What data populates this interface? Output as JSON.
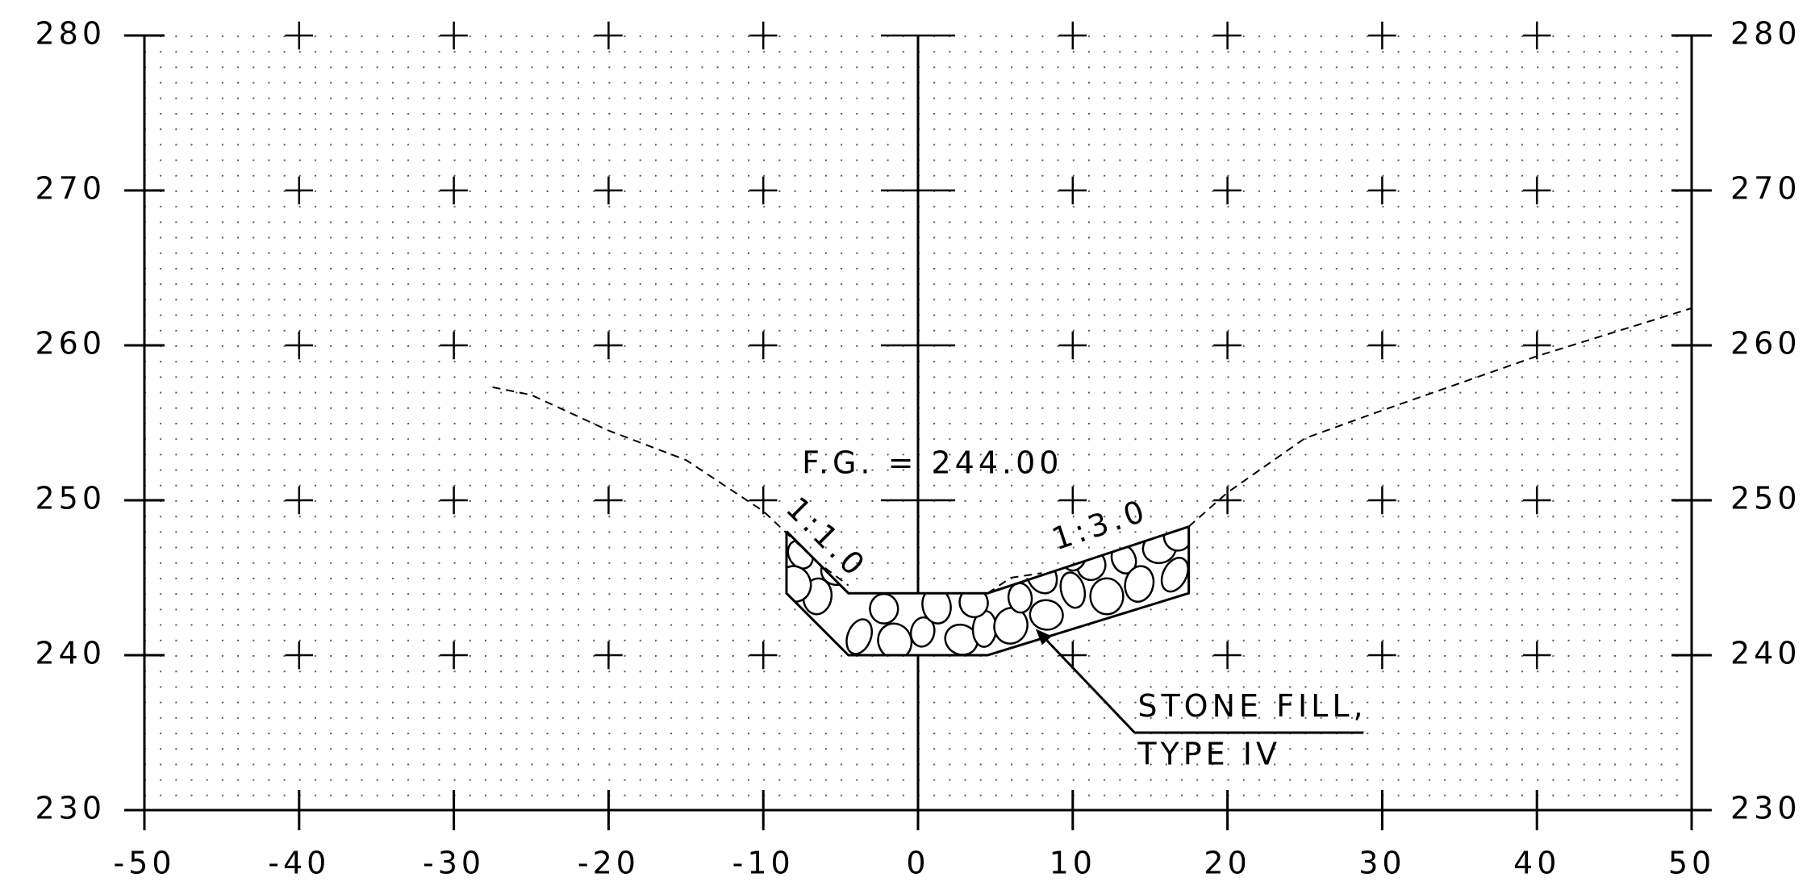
{
  "chart_data": {
    "type": "line",
    "xlim": [
      -50,
      50
    ],
    "ylim": [
      230,
      280
    ],
    "xticks": [
      -50,
      -40,
      -30,
      -20,
      -10,
      0,
      10,
      20,
      30,
      40,
      50
    ],
    "yticks": [
      230,
      240,
      250,
      260,
      270,
      280
    ],
    "grid": true,
    "series": [
      {
        "color": "#000000",
        "dashed": true,
        "x": [
          -27.5,
          -25,
          -20,
          -15,
          -10,
          -6.5,
          -4.5,
          0,
          4.5,
          6,
          8,
          12,
          17.5,
          20,
          25,
          30,
          40,
          50
        ],
        "values": [
          257.3,
          256.8,
          254.5,
          252.6,
          249.3,
          246,
          244.5,
          null,
          244,
          245,
          245.3,
          null,
          248.3,
          250.5,
          254,
          255.8,
          259.3,
          262.4
        ]
      },
      {
        "color": "#000000",
        "dashed": false,
        "x": [
          -8.5,
          -8.5,
          -4.5,
          4.5,
          17.5,
          17.5
        ],
        "values": [
          248,
          244,
          240,
          240,
          244,
          248.3
        ]
      },
      {
        "color": "#000000",
        "dashed": false,
        "x": [
          -8.5,
          -4.5,
          4.5,
          17.5
        ],
        "values": [
          248,
          244,
          244,
          248.3
        ]
      }
    ],
    "annotations": [
      "F.G. = 244.00",
      "1:1.0",
      "1:3.0",
      "STONE FILL,",
      "TYPE IV"
    ]
  }
}
